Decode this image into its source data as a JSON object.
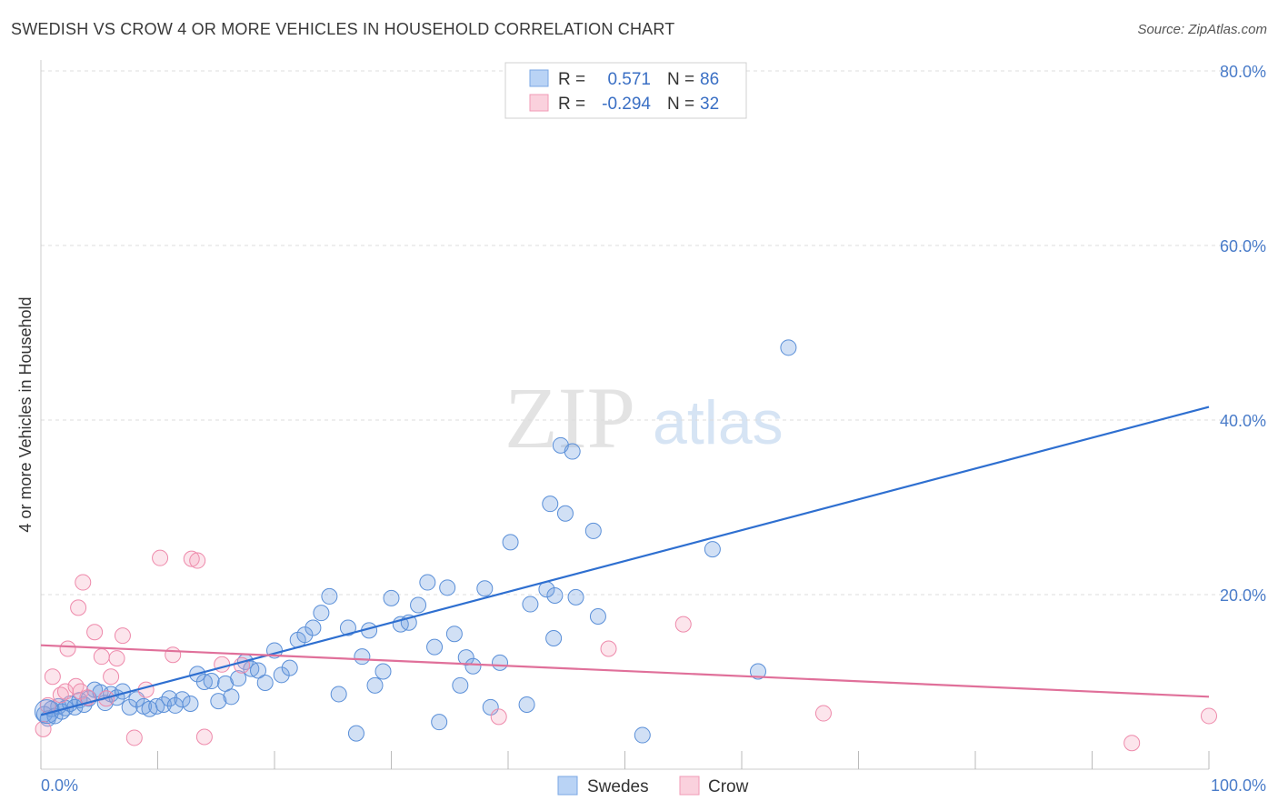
{
  "header": {
    "title": "SWEDISH VS CROW 4 OR MORE VEHICLES IN HOUSEHOLD CORRELATION CHART",
    "source": "Source: ZipAtlas.com"
  },
  "legend_top": {
    "rows": [
      {
        "r_label": "R =",
        "r_value": "0.571",
        "n_label": "N =",
        "n_value": "86"
      },
      {
        "r_label": "R =",
        "r_value": "-0.294",
        "n_label": "N =",
        "n_value": "32"
      }
    ]
  },
  "watermark": {
    "zip": "ZIP",
    "atlas": "atlas"
  },
  "chart_data": {
    "type": "scatter",
    "title": "SWEDISH VS CROW 4 OR MORE VEHICLES IN HOUSEHOLD CORRELATION CHART",
    "xlabel": "",
    "ylabel": "4 or more Vehicles in Household",
    "xlim": [
      0,
      100
    ],
    "ylim": [
      0,
      80
    ],
    "x_tick_labels": [
      "0.0%",
      "100.0%"
    ],
    "y_ticks": [
      20,
      40,
      60,
      80
    ],
    "y_tick_labels": [
      "20.0%",
      "40.0%",
      "60.0%",
      "80.0%"
    ],
    "grid": true,
    "legend_placement": "bottom-center",
    "colors": {
      "swedes": "#6f9fe0",
      "crow": "#f4a3bb",
      "swedes_line": "#2e6fd0",
      "crow_line": "#e0709a"
    },
    "series": [
      {
        "name": "Swedes",
        "points": [
          [
            0.3,
            6.3
          ],
          [
            0.6,
            5.8
          ],
          [
            0.9,
            6.9
          ],
          [
            1.2,
            6.1
          ],
          [
            1.5,
            7.2
          ],
          [
            1.8,
            6.6
          ],
          [
            2.1,
            7.0
          ],
          [
            2.5,
            7.5
          ],
          [
            2.9,
            7.1
          ],
          [
            3.3,
            7.9
          ],
          [
            3.7,
            7.4
          ],
          [
            4.1,
            8.1
          ],
          [
            4.6,
            9.1
          ],
          [
            5.1,
            8.8
          ],
          [
            5.5,
            7.6
          ],
          [
            6.0,
            8.6
          ],
          [
            6.5,
            8.2
          ],
          [
            7.0,
            8.9
          ],
          [
            7.6,
            7.1
          ],
          [
            8.2,
            8.0
          ],
          [
            8.8,
            7.2
          ],
          [
            9.3,
            6.9
          ],
          [
            9.9,
            7.2
          ],
          [
            10.5,
            7.4
          ],
          [
            11.0,
            8.1
          ],
          [
            11.5,
            7.3
          ],
          [
            12.1,
            8.0
          ],
          [
            12.8,
            7.5
          ],
          [
            13.4,
            10.9
          ],
          [
            14.0,
            10.0
          ],
          [
            14.6,
            10.1
          ],
          [
            15.2,
            7.8
          ],
          [
            15.8,
            9.8
          ],
          [
            16.3,
            8.3
          ],
          [
            16.9,
            10.4
          ],
          [
            17.5,
            12.3
          ],
          [
            18.0,
            11.5
          ],
          [
            18.6,
            11.3
          ],
          [
            19.2,
            9.9
          ],
          [
            20.0,
            13.6
          ],
          [
            20.6,
            10.8
          ],
          [
            21.3,
            11.6
          ],
          [
            22.0,
            14.8
          ],
          [
            22.6,
            15.4
          ],
          [
            23.3,
            16.2
          ],
          [
            24.0,
            17.9
          ],
          [
            24.7,
            19.8
          ],
          [
            25.5,
            8.6
          ],
          [
            26.3,
            16.2
          ],
          [
            27.0,
            4.1
          ],
          [
            27.5,
            12.9
          ],
          [
            28.1,
            15.9
          ],
          [
            28.6,
            9.6
          ],
          [
            29.3,
            11.2
          ],
          [
            30.0,
            19.6
          ],
          [
            30.8,
            16.6
          ],
          [
            31.5,
            16.8
          ],
          [
            32.3,
            18.8
          ],
          [
            33.1,
            21.4
          ],
          [
            33.7,
            14.0
          ],
          [
            34.1,
            5.4
          ],
          [
            34.8,
            20.8
          ],
          [
            35.4,
            15.5
          ],
          [
            35.9,
            9.6
          ],
          [
            36.4,
            12.8
          ],
          [
            37.0,
            11.8
          ],
          [
            38.0,
            20.7
          ],
          [
            38.5,
            7.1
          ],
          [
            39.3,
            12.2
          ],
          [
            40.2,
            26.0
          ],
          [
            41.6,
            7.4
          ],
          [
            41.9,
            18.9
          ],
          [
            43.3,
            20.6
          ],
          [
            43.6,
            30.4
          ],
          [
            43.9,
            15.0
          ],
          [
            44.0,
            19.9
          ],
          [
            44.5,
            37.1
          ],
          [
            44.9,
            29.3
          ],
          [
            45.5,
            36.4
          ],
          [
            45.8,
            19.7
          ],
          [
            47.3,
            27.3
          ],
          [
            47.7,
            17.5
          ],
          [
            51.5,
            3.9
          ],
          [
            57.5,
            25.2
          ],
          [
            61.4,
            11.2
          ],
          [
            64.0,
            48.3
          ]
        ]
      },
      {
        "name": "Crow",
        "points": [
          [
            0.2,
            4.6
          ],
          [
            0.6,
            7.3
          ],
          [
            1.0,
            10.6
          ],
          [
            1.7,
            8.5
          ],
          [
            2.1,
            8.9
          ],
          [
            2.3,
            13.8
          ],
          [
            3.0,
            9.5
          ],
          [
            3.2,
            18.5
          ],
          [
            3.4,
            8.9
          ],
          [
            3.6,
            21.4
          ],
          [
            4.0,
            8.2
          ],
          [
            4.6,
            15.7
          ],
          [
            5.2,
            12.9
          ],
          [
            5.6,
            8.1
          ],
          [
            6.0,
            10.6
          ],
          [
            6.5,
            12.7
          ],
          [
            7.0,
            15.3
          ],
          [
            8.0,
            3.6
          ],
          [
            9.0,
            9.1
          ],
          [
            10.2,
            24.2
          ],
          [
            11.3,
            13.1
          ],
          [
            12.9,
            24.1
          ],
          [
            13.4,
            23.9
          ],
          [
            14.0,
            3.7
          ],
          [
            15.5,
            12.0
          ],
          [
            17.2,
            11.9
          ],
          [
            39.2,
            6.0
          ],
          [
            48.6,
            13.8
          ],
          [
            55.0,
            16.6
          ],
          [
            67.0,
            6.4
          ],
          [
            93.4,
            3.0
          ],
          [
            100.0,
            6.1
          ]
        ]
      }
    ],
    "trend_lines": [
      {
        "name": "Swedes",
        "from": [
          0,
          6.2
        ],
        "to": [
          100,
          41.5
        ]
      },
      {
        "name": "Crow",
        "from": [
          0,
          14.2
        ],
        "to": [
          100,
          8.3
        ]
      }
    ]
  },
  "legend_bottom": {
    "items": [
      {
        "label": "Swedes"
      },
      {
        "label": "Crow"
      }
    ]
  }
}
